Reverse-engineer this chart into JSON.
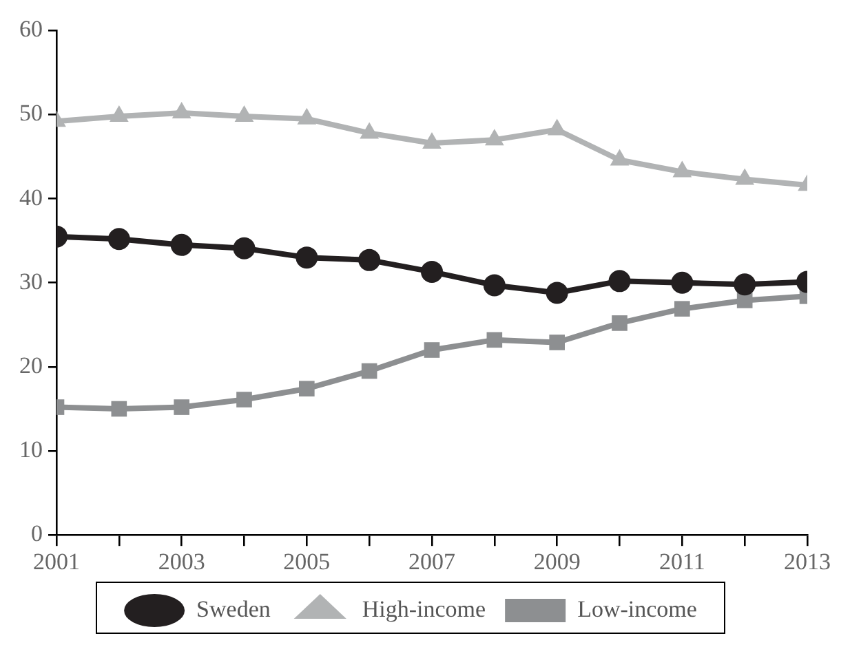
{
  "chart_data": {
    "type": "line",
    "x": [
      2001,
      2002,
      2003,
      2004,
      2005,
      2006,
      2007,
      2008,
      2009,
      2010,
      2011,
      2012,
      2013
    ],
    "xlim": [
      2001,
      2013
    ],
    "xticks": [
      2001,
      {
        "value": 2002,
        "label": null
      },
      2003,
      {
        "value": 2004,
        "label": null
      },
      2005,
      {
        "value": 2006,
        "label": null
      },
      2007,
      {
        "value": 2008,
        "label": null
      },
      2009,
      {
        "value": 2010,
        "label": null
      },
      2011,
      {
        "value": 2012,
        "label": null
      },
      2013
    ],
    "ylim": [
      0,
      60
    ],
    "yticks": [
      0,
      10,
      20,
      30,
      40,
      50,
      60
    ],
    "grid": false,
    "legend": "bottom",
    "series": [
      {
        "name": "Sweden",
        "color": "#231f20",
        "marker": "circle",
        "values": [
          35.5,
          35.2,
          34.5,
          34.1,
          33.0,
          32.7,
          31.3,
          29.7,
          28.8,
          30.2,
          30.0,
          29.8,
          30.1
        ]
      },
      {
        "name": "High-income",
        "color": "#b1b3b4",
        "marker": "triangle",
        "values": [
          49.2,
          49.8,
          50.2,
          49.8,
          49.5,
          47.8,
          46.6,
          47.0,
          48.2,
          44.6,
          43.2,
          42.3,
          41.6
        ]
      },
      {
        "name": "Low-income",
        "color": "#8d8f91",
        "marker": "square",
        "values": [
          15.2,
          15.0,
          15.2,
          16.1,
          17.4,
          19.5,
          22.0,
          23.2,
          22.9,
          25.2,
          26.9,
          27.9,
          28.4
        ]
      }
    ]
  }
}
